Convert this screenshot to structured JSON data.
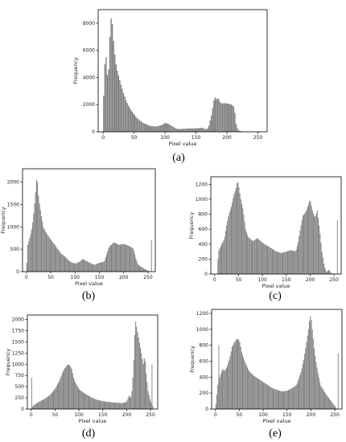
{
  "colors": {
    "bar": "#808080",
    "axis": "#000000",
    "background": "#ffffff"
  },
  "chart_data": [
    {
      "id": "a",
      "type": "bar",
      "caption": "(a)",
      "xlabel": "Pixel value",
      "ylabel": "Frequency",
      "xlim": [
        -8,
        265
      ],
      "ylim": [
        0,
        9000
      ],
      "xticks": [
        0,
        50,
        100,
        150,
        200,
        250
      ],
      "yticks": [
        0,
        2000,
        4000,
        6000,
        8000
      ],
      "profile": [
        [
          0,
          1500
        ],
        [
          3,
          5000
        ],
        [
          4,
          7100
        ],
        [
          5,
          5500
        ],
        [
          6,
          5200
        ],
        [
          8,
          3200
        ],
        [
          10,
          6000
        ],
        [
          12,
          8000
        ],
        [
          14,
          8700
        ],
        [
          16,
          7200
        ],
        [
          18,
          6200
        ],
        [
          20,
          5200
        ],
        [
          23,
          4500
        ],
        [
          27,
          3800
        ],
        [
          32,
          3000
        ],
        [
          38,
          2200
        ],
        [
          45,
          1600
        ],
        [
          55,
          1000
        ],
        [
          65,
          650
        ],
        [
          75,
          450
        ],
        [
          85,
          380
        ],
        [
          95,
          500
        ],
        [
          100,
          650
        ],
        [
          105,
          600
        ],
        [
          112,
          400
        ],
        [
          120,
          200
        ],
        [
          130,
          220
        ],
        [
          140,
          250
        ],
        [
          150,
          250
        ],
        [
          160,
          300
        ],
        [
          165,
          200
        ],
        [
          170,
          250
        ],
        [
          175,
          1200
        ],
        [
          178,
          2000
        ],
        [
          180,
          2600
        ],
        [
          183,
          2400
        ],
        [
          186,
          2500
        ],
        [
          190,
          2100
        ],
        [
          200,
          2100
        ],
        [
          208,
          2000
        ],
        [
          212,
          1800
        ],
        [
          215,
          600
        ],
        [
          218,
          120
        ],
        [
          225,
          30
        ],
        [
          250,
          10
        ],
        [
          255,
          40
        ]
      ],
      "spikes": []
    },
    {
      "id": "b",
      "type": "bar",
      "caption": "(b)",
      "xlabel": "Pixel value",
      "ylabel": "Frequency",
      "xlim": [
        -8,
        265
      ],
      "ylim": [
        0,
        2300
      ],
      "xticks": [
        0,
        50,
        100,
        150,
        200,
        250
      ],
      "yticks": [
        0,
        500,
        1000,
        1500,
        2000
      ],
      "profile": [
        [
          0,
          0
        ],
        [
          3,
          600
        ],
        [
          8,
          800
        ],
        [
          12,
          1000
        ],
        [
          16,
          1400
        ],
        [
          20,
          1900
        ],
        [
          22,
          2200
        ],
        [
          24,
          1800
        ],
        [
          26,
          1600
        ],
        [
          30,
          1300
        ],
        [
          35,
          1000
        ],
        [
          40,
          880
        ],
        [
          50,
          720
        ],
        [
          60,
          580
        ],
        [
          70,
          420
        ],
        [
          80,
          330
        ],
        [
          90,
          220
        ],
        [
          100,
          180
        ],
        [
          110,
          220
        ],
        [
          115,
          280
        ],
        [
          120,
          260
        ],
        [
          130,
          200
        ],
        [
          140,
          150
        ],
        [
          150,
          200
        ],
        [
          160,
          220
        ],
        [
          165,
          380
        ],
        [
          170,
          560
        ],
        [
          175,
          600
        ],
        [
          180,
          660
        ],
        [
          190,
          600
        ],
        [
          200,
          620
        ],
        [
          210,
          580
        ],
        [
          220,
          520
        ],
        [
          225,
          300
        ],
        [
          230,
          150
        ],
        [
          240,
          80
        ],
        [
          250,
          20
        ],
        [
          255,
          0
        ]
      ],
      "spikes": [
        [
          257,
          700
        ]
      ]
    },
    {
      "id": "c",
      "type": "bar",
      "caption": "(c)",
      "xlabel": "Pixel value",
      "ylabel": "Frequency",
      "xlim": [
        -8,
        265
      ],
      "ylim": [
        0,
        1300
      ],
      "xticks": [
        0,
        50,
        100,
        150,
        200,
        250
      ],
      "yticks": [
        0,
        200,
        400,
        600,
        800,
        1000,
        1200
      ],
      "profile": [
        [
          0,
          0
        ],
        [
          5,
          0
        ],
        [
          8,
          300
        ],
        [
          15,
          400
        ],
        [
          20,
          460
        ],
        [
          25,
          650
        ],
        [
          30,
          800
        ],
        [
          35,
          900
        ],
        [
          40,
          1050
        ],
        [
          45,
          1150
        ],
        [
          48,
          1250
        ],
        [
          50,
          1200
        ],
        [
          55,
          1000
        ],
        [
          60,
          850
        ],
        [
          65,
          600
        ],
        [
          70,
          500
        ],
        [
          80,
          440
        ],
        [
          90,
          480
        ],
        [
          100,
          420
        ],
        [
          110,
          380
        ],
        [
          120,
          340
        ],
        [
          130,
          300
        ],
        [
          140,
          280
        ],
        [
          150,
          300
        ],
        [
          160,
          320
        ],
        [
          170,
          300
        ],
        [
          175,
          430
        ],
        [
          180,
          620
        ],
        [
          185,
          780
        ],
        [
          190,
          820
        ],
        [
          195,
          900
        ],
        [
          200,
          1000
        ],
        [
          205,
          850
        ],
        [
          210,
          750
        ],
        [
          215,
          850
        ],
        [
          220,
          600
        ],
        [
          225,
          300
        ],
        [
          230,
          100
        ],
        [
          235,
          30
        ],
        [
          240,
          60
        ],
        [
          245,
          10
        ],
        [
          250,
          0
        ]
      ],
      "spikes": [
        [
          257,
          720
        ]
      ]
    },
    {
      "id": "d",
      "type": "bar",
      "caption": "(d)",
      "xlabel": "Pixel value",
      "ylabel": "Frequency",
      "xlim": [
        -8,
        265
      ],
      "ylim": [
        0,
        2100
      ],
      "xticks": [
        0,
        50,
        100,
        150,
        200,
        250
      ],
      "yticks": [
        0,
        250,
        500,
        750,
        1000,
        1250,
        1500,
        1750,
        2000
      ],
      "profile": [
        [
          0,
          0
        ],
        [
          5,
          80
        ],
        [
          10,
          120
        ],
        [
          20,
          180
        ],
        [
          30,
          240
        ],
        [
          40,
          320
        ],
        [
          50,
          450
        ],
        [
          60,
          650
        ],
        [
          65,
          800
        ],
        [
          70,
          900
        ],
        [
          75,
          980
        ],
        [
          80,
          1000
        ],
        [
          85,
          900
        ],
        [
          90,
          650
        ],
        [
          100,
          450
        ],
        [
          110,
          360
        ],
        [
          120,
          300
        ],
        [
          130,
          240
        ],
        [
          140,
          200
        ],
        [
          150,
          180
        ],
        [
          160,
          160
        ],
        [
          170,
          150
        ],
        [
          180,
          140
        ],
        [
          190,
          130
        ],
        [
          200,
          160
        ],
        [
          205,
          300
        ],
        [
          210,
          250
        ],
        [
          213,
          700
        ],
        [
          216,
          1300
        ],
        [
          218,
          2000
        ],
        [
          220,
          1900
        ],
        [
          225,
          1600
        ],
        [
          230,
          1300
        ],
        [
          235,
          1000
        ],
        [
          238,
          1200
        ],
        [
          241,
          800
        ],
        [
          245,
          400
        ],
        [
          250,
          180
        ],
        [
          255,
          60
        ]
      ],
      "spikes": [
        [
          1,
          700
        ],
        [
          253,
          1000
        ]
      ]
    },
    {
      "id": "e",
      "type": "bar",
      "caption": "(e)",
      "xlabel": "Pixel value",
      "ylabel": "Frequency",
      "xlim": [
        -8,
        265
      ],
      "ylim": [
        0,
        1250
      ],
      "xticks": [
        0,
        50,
        100,
        150,
        200,
        250
      ],
      "yticks": [
        0,
        200,
        400,
        600,
        800,
        1000,
        1200
      ],
      "profile": [
        [
          0,
          0
        ],
        [
          5,
          300
        ],
        [
          10,
          420
        ],
        [
          15,
          500
        ],
        [
          20,
          480
        ],
        [
          25,
          540
        ],
        [
          30,
          640
        ],
        [
          35,
          780
        ],
        [
          40,
          840
        ],
        [
          45,
          880
        ],
        [
          50,
          870
        ],
        [
          55,
          720
        ],
        [
          60,
          620
        ],
        [
          70,
          480
        ],
        [
          80,
          420
        ],
        [
          90,
          380
        ],
        [
          100,
          340
        ],
        [
          110,
          300
        ],
        [
          120,
          260
        ],
        [
          130,
          240
        ],
        [
          140,
          220
        ],
        [
          150,
          230
        ],
        [
          160,
          260
        ],
        [
          170,
          300
        ],
        [
          180,
          480
        ],
        [
          185,
          620
        ],
        [
          190,
          800
        ],
        [
          195,
          1000
        ],
        [
          198,
          1150
        ],
        [
          200,
          1180
        ],
        [
          203,
          1000
        ],
        [
          208,
          700
        ],
        [
          215,
          450
        ],
        [
          220,
          300
        ],
        [
          230,
          200
        ],
        [
          240,
          120
        ],
        [
          250,
          40
        ],
        [
          255,
          0
        ]
      ],
      "spikes": [
        [
          7,
          800
        ],
        [
          257,
          700
        ]
      ]
    }
  ]
}
